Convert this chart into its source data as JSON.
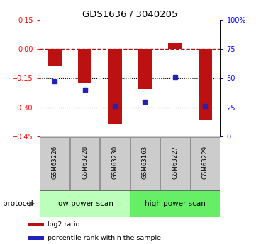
{
  "title": "GDS1636 / 3040205",
  "samples": [
    "GSM63226",
    "GSM63228",
    "GSM63230",
    "GSM63163",
    "GSM63227",
    "GSM63229"
  ],
  "log2_ratio": [
    -0.09,
    -0.175,
    -0.385,
    -0.205,
    0.03,
    -0.365
  ],
  "percentile_rank": [
    47,
    40,
    26,
    30,
    51,
    26
  ],
  "ylim_left": [
    -0.45,
    0.15
  ],
  "ylim_right": [
    0,
    100
  ],
  "yticks_left": [
    0.15,
    0.0,
    -0.15,
    -0.3,
    -0.45
  ],
  "yticks_right": [
    100,
    75,
    50,
    25,
    0
  ],
  "bar_color": "#bb1111",
  "dot_color": "#2222bb",
  "dotted_lines": [
    -0.15,
    -0.3
  ],
  "protocol_groups": [
    {
      "label": "low power scan",
      "start": 0,
      "end": 3,
      "color": "#bbffbb"
    },
    {
      "label": "high power scan",
      "start": 3,
      "end": 6,
      "color": "#66ee66"
    }
  ],
  "protocol_label": "protocol",
  "legend_items": [
    {
      "label": "log2 ratio",
      "color": "#bb1111"
    },
    {
      "label": "percentile rank within the sample",
      "color": "#2222bb"
    }
  ],
  "bar_width": 0.45,
  "background_color": "#ffffff"
}
